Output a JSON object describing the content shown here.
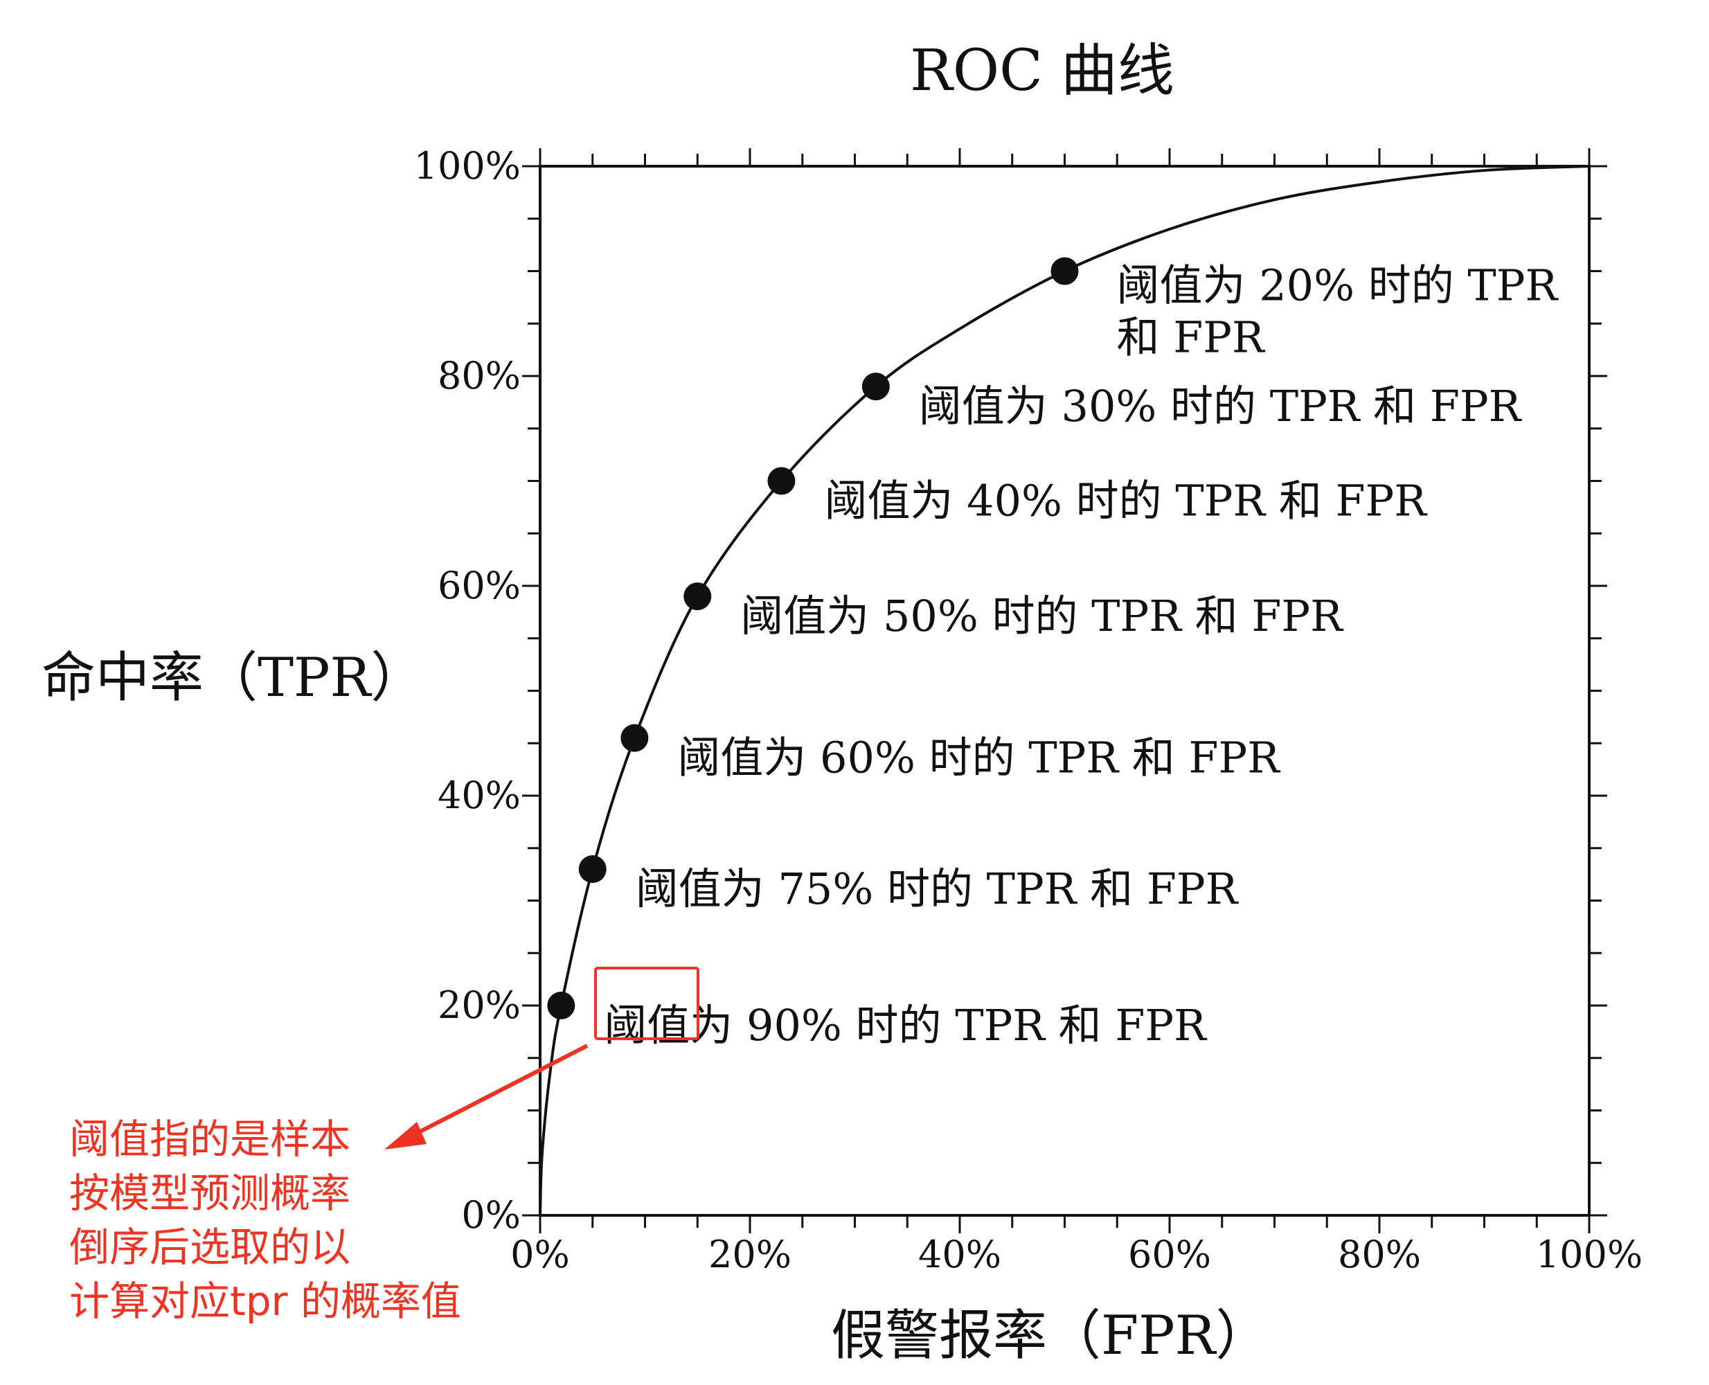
{
  "chart_data": {
    "type": "line",
    "title": "ROC 曲线",
    "xlabel": "假警报率（FPR）",
    "ylabel": "命中率（TPR）",
    "xlim": [
      0,
      1
    ],
    "ylim": [
      0,
      1
    ],
    "x_ticks": [
      "0%",
      "20%",
      "40%",
      "60%",
      "80%",
      "100%"
    ],
    "y_ticks": [
      "0%",
      "20%",
      "40%",
      "60%",
      "80%",
      "100%"
    ],
    "grid": false,
    "curve": [
      [
        0.0,
        0.0
      ],
      [
        0.002,
        0.06
      ],
      [
        0.01,
        0.14
      ],
      [
        0.02,
        0.2
      ],
      [
        0.05,
        0.33
      ],
      [
        0.09,
        0.455
      ],
      [
        0.15,
        0.59
      ],
      [
        0.23,
        0.7
      ],
      [
        0.32,
        0.79
      ],
      [
        0.4,
        0.845
      ],
      [
        0.5,
        0.9
      ],
      [
        0.6,
        0.94
      ],
      [
        0.7,
        0.968
      ],
      [
        0.8,
        0.985
      ],
      [
        0.9,
        0.996
      ],
      [
        1.0,
        1.0
      ]
    ],
    "points": [
      {
        "fpr": 0.02,
        "tpr": 0.2,
        "label": "阈值为 90% 时的 TPR 和 FPR"
      },
      {
        "fpr": 0.05,
        "tpr": 0.33,
        "label": "阈值为 75% 时的 TPR 和 FPR"
      },
      {
        "fpr": 0.09,
        "tpr": 0.455,
        "label": "阈值为 60% 时的 TPR 和 FPR"
      },
      {
        "fpr": 0.15,
        "tpr": 0.59,
        "label": "阈值为 50% 时的 TPR 和 FPR"
      },
      {
        "fpr": 0.23,
        "tpr": 0.7,
        "label": "阈值为 40% 时的 TPR 和 FPR"
      },
      {
        "fpr": 0.32,
        "tpr": 0.79,
        "label": "阈值为 30% 时的 TPR 和 FPR"
      },
      {
        "fpr": 0.5,
        "tpr": 0.9,
        "label": "阈值为 20% 时的 TPR 和 FPR"
      }
    ]
  },
  "annotation": {
    "lines": [
      "阈值指的是样本",
      "按模型预测概率",
      "倒序后选取的以",
      "计算对应tpr 的概率值"
    ],
    "color": "#ee3322"
  }
}
